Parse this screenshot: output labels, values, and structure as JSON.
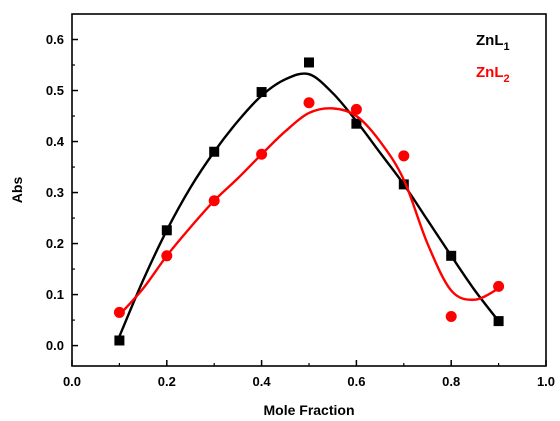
{
  "chart_data": {
    "type": "scatter",
    "title": "",
    "xlabel": "Mole Fraction",
    "ylabel": "Abs",
    "xlim": [
      0.0,
      1.0
    ],
    "ylim": [
      -0.04,
      0.65
    ],
    "x_ticks": [
      0.0,
      0.2,
      0.4,
      0.6,
      0.8,
      1.0
    ],
    "x_tick_labels": [
      "0.0",
      "0.2",
      "0.4",
      "0.6",
      "0.8",
      "1.0"
    ],
    "y_ticks": [
      0.0,
      0.1,
      0.2,
      0.3,
      0.4,
      0.5,
      0.6
    ],
    "y_tick_labels": [
      "0.0",
      "0.1",
      "0.2",
      "0.3",
      "0.4",
      "0.5",
      "0.6"
    ],
    "grid": false,
    "legend_position": "top-right",
    "series": [
      {
        "name": "ZnL",
        "name_subscript": "1",
        "color": "#000000",
        "marker": "square",
        "x": [
          0.1,
          0.2,
          0.3,
          0.4,
          0.5,
          0.6,
          0.7,
          0.8,
          0.9
        ],
        "y": [
          0.01,
          0.226,
          0.38,
          0.497,
          0.555,
          0.435,
          0.316,
          0.176,
          0.048
        ],
        "fit": {
          "x": [
            0.1,
            0.15,
            0.2,
            0.25,
            0.3,
            0.35,
            0.4,
            0.45,
            0.5,
            0.55,
            0.6,
            0.65,
            0.7,
            0.75,
            0.8,
            0.85,
            0.9
          ],
          "y": [
            0.018,
            0.128,
            0.226,
            0.31,
            0.38,
            0.44,
            0.49,
            0.522,
            0.532,
            0.495,
            0.44,
            0.378,
            0.316,
            0.246,
            0.176,
            0.108,
            0.048
          ]
        }
      },
      {
        "name": "ZnL",
        "name_subscript": "2",
        "color": "#ff0000",
        "marker": "circle",
        "x": [
          0.1,
          0.2,
          0.3,
          0.4,
          0.5,
          0.6,
          0.7,
          0.8,
          0.9
        ],
        "y": [
          0.065,
          0.176,
          0.284,
          0.375,
          0.476,
          0.463,
          0.372,
          0.057,
          0.116
        ],
        "fit": {
          "x": [
            0.1,
            0.15,
            0.2,
            0.25,
            0.3,
            0.35,
            0.4,
            0.45,
            0.5,
            0.55,
            0.6,
            0.65,
            0.7,
            0.75,
            0.8,
            0.85,
            0.9
          ],
          "y": [
            0.06,
            0.112,
            0.176,
            0.232,
            0.284,
            0.328,
            0.375,
            0.42,
            0.456,
            0.465,
            0.45,
            0.4,
            0.325,
            0.2,
            0.108,
            0.09,
            0.112
          ]
        }
      }
    ]
  }
}
